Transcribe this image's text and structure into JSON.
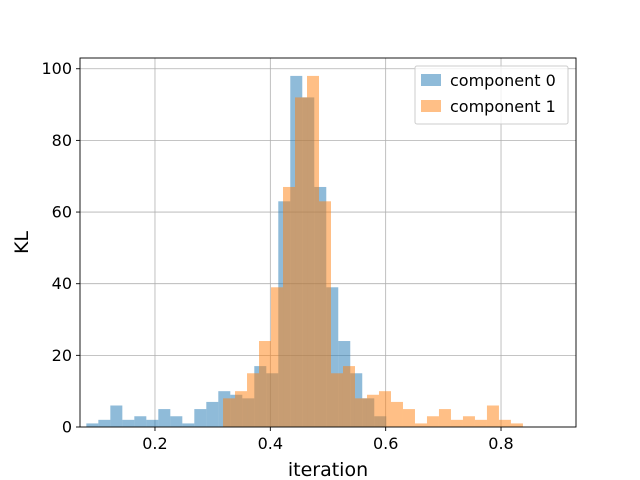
{
  "chart_data": {
    "type": "bar",
    "title": "",
    "xlabel": "iteration",
    "ylabel": "KL",
    "xlim": [
      0.07,
      0.93
    ],
    "ylim": [
      0,
      103
    ],
    "xticks": [
      0.2,
      0.4,
      0.6,
      0.8
    ],
    "xtick_labels": [
      "0.2",
      "0.4",
      "0.6",
      "0.8"
    ],
    "yticks": [
      0,
      20,
      40,
      60,
      80,
      100
    ],
    "ytick_labels": [
      "0",
      "20",
      "40",
      "60",
      "80",
      "100"
    ],
    "grid": true,
    "legend_position": "top-right",
    "series": [
      {
        "name": "component 0",
        "color": "#1f77b4",
        "alpha": 0.5,
        "bin_start": 0.081,
        "bin_width": 0.0208,
        "counts": [
          1,
          2,
          6,
          2,
          3,
          2,
          5,
          3,
          1,
          5,
          7,
          10,
          9,
          8,
          17,
          15,
          63,
          98,
          92,
          67,
          39,
          24,
          15,
          8,
          3
        ]
      },
      {
        "name": "component 1",
        "color": "#ff7f0e",
        "alpha": 0.5,
        "bin_start": 0.318,
        "bin_width": 0.0208,
        "counts": [
          8,
          10,
          15,
          24,
          39,
          67,
          92,
          98,
          63,
          15,
          17,
          8,
          9,
          10,
          7,
          5,
          1,
          3,
          5,
          2,
          3,
          2,
          6,
          2,
          1
        ]
      }
    ]
  }
}
